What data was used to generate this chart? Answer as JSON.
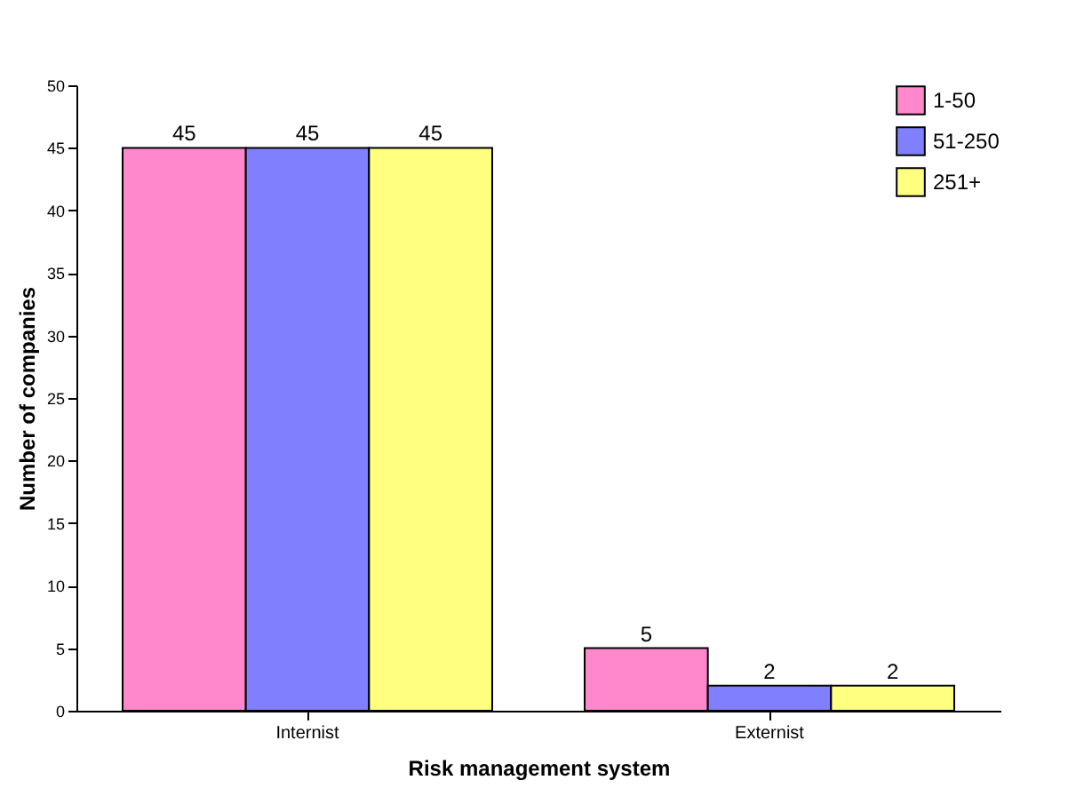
{
  "chart_data": {
    "type": "bar",
    "xlabel": "Risk management system",
    "ylabel": "Number of companies",
    "categories": [
      "Internist",
      "Externist"
    ],
    "series": [
      {
        "name": "1-50",
        "color": "#ff88cc",
        "values": [
          45,
          5
        ]
      },
      {
        "name": "51-250",
        "color": "#8080ff",
        "values": [
          45,
          2
        ]
      },
      {
        "name": "251+",
        "color": "#ffff80",
        "values": [
          45,
          2
        ]
      }
    ],
    "ylim": [
      0,
      50
    ],
    "yticks": [
      0,
      5,
      10,
      15,
      20,
      25,
      30,
      35,
      40,
      45,
      50
    ],
    "grid": false,
    "legend": "top right",
    "data_labels": true
  }
}
